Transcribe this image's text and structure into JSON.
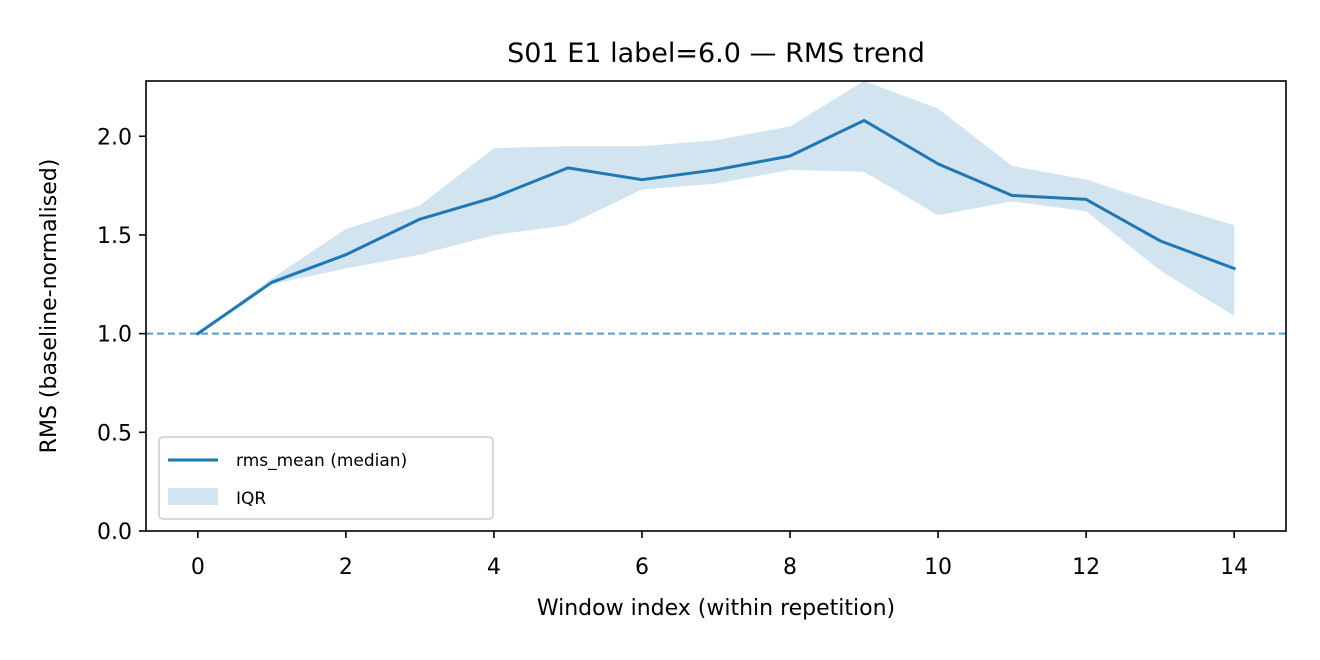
{
  "chart_data": {
    "type": "line",
    "title": "S01 E1 label=6.0 — RMS trend",
    "xlabel": "Window index (within repetition)",
    "ylabel": "RMS (baseline-normalised)",
    "xlim": [
      -0.7,
      14.7
    ],
    "ylim": [
      0.0,
      2.28
    ],
    "xticks": [
      0,
      2,
      4,
      6,
      8,
      10,
      12,
      14
    ],
    "xtick_labels": [
      "0",
      "2",
      "4",
      "6",
      "8",
      "10",
      "12",
      "14"
    ],
    "yticks": [
      0.0,
      0.5,
      1.0,
      1.5,
      2.0
    ],
    "ytick_labels": [
      "0.0",
      "0.5",
      "1.0",
      "1.5",
      "2.0"
    ],
    "x": [
      0,
      1,
      2,
      3,
      4,
      5,
      6,
      7,
      8,
      9,
      10,
      11,
      12,
      13,
      14
    ],
    "series": [
      {
        "name": "rms_mean (median)",
        "kind": "line",
        "color": "#1f77b4",
        "values": [
          1.0,
          1.26,
          1.4,
          1.58,
          1.69,
          1.84,
          1.78,
          1.83,
          1.9,
          2.08,
          1.86,
          1.7,
          1.68,
          1.47,
          1.33
        ]
      },
      {
        "name": "IQR",
        "kind": "band",
        "color": "#1f77b4",
        "alpha": 0.2,
        "lower": [
          1.0,
          1.25,
          1.33,
          1.4,
          1.5,
          1.55,
          1.73,
          1.76,
          1.83,
          1.82,
          1.6,
          1.67,
          1.62,
          1.32,
          1.09
        ],
        "upper": [
          1.0,
          1.28,
          1.53,
          1.65,
          1.94,
          1.95,
          1.95,
          1.98,
          2.05,
          2.28,
          2.14,
          1.85,
          1.78,
          1.66,
          1.55
        ]
      }
    ],
    "reference_line": {
      "y": 1.0,
      "style": "dashed",
      "color": "#5b9bc4"
    },
    "legend": {
      "placement": "lower-left",
      "entries": [
        "rms_mean (median)",
        "IQR"
      ]
    },
    "grid": false
  }
}
